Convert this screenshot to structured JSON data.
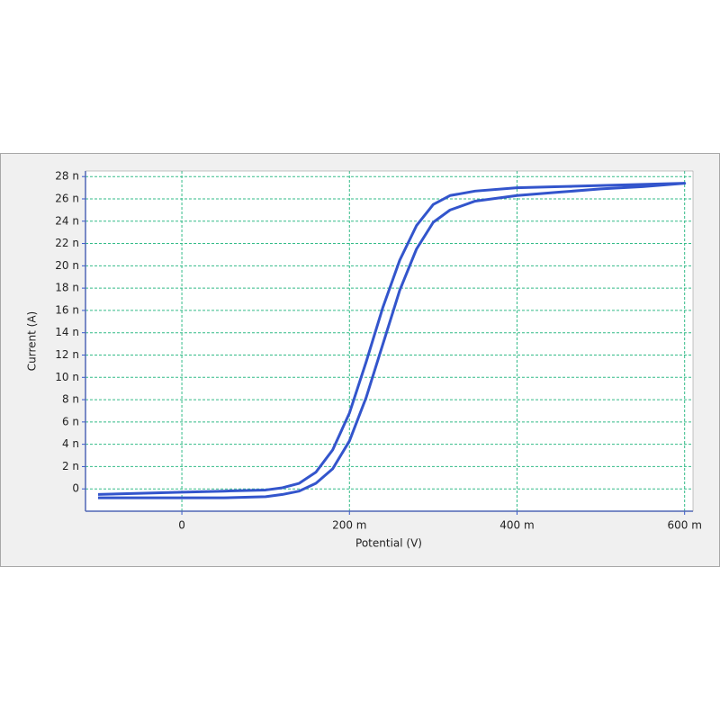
{
  "chart_data": {
    "type": "line",
    "x_label": "Potential (V)",
    "y_label": "Current (A)",
    "x": [
      -0.1,
      -0.05,
      0,
      0.05,
      0.1,
      0.12,
      0.14,
      0.16,
      0.18,
      0.2,
      0.22,
      0.24,
      0.26,
      0.28,
      0.3,
      0.32,
      0.35,
      0.4,
      0.45,
      0.5,
      0.55,
      0.6,
      0.6,
      0.55,
      0.5,
      0.45,
      0.4,
      0.35,
      0.32,
      0.3,
      0.28,
      0.26,
      0.24,
      0.22,
      0.2,
      0.18,
      0.16,
      0.14,
      0.12,
      0.1,
      0.05,
      0,
      -0.05,
      -0.1
    ],
    "values": [
      -8e-10,
      -8e-10,
      -8e-10,
      -8e-10,
      -7e-10,
      -5e-10,
      -2e-10,
      5e-10,
      1.8e-09,
      4.3e-09,
      8.2e-09,
      1.3e-08,
      1.78e-08,
      2.15e-08,
      2.39e-08,
      2.5e-08,
      2.58e-08,
      2.63e-08,
      2.66e-08,
      2.69e-08,
      2.71e-08,
      2.74e-08,
      2.74e-08,
      2.73e-08,
      2.72e-08,
      2.71e-08,
      2.7e-08,
      2.67e-08,
      2.63e-08,
      2.55e-08,
      2.36e-08,
      2.05e-08,
      1.63e-08,
      1.14e-08,
      6.8e-09,
      3.5e-09,
      1.5e-09,
      5e-10,
      1e-10,
      -1e-10,
      -2e-10,
      -3e-10,
      -4e-10,
      -5e-10
    ],
    "color": "#3355cc",
    "xlim": [
      -0.115,
      0.61
    ],
    "ylim": [
      -2e-09,
      2.85e-08
    ],
    "xticks": [
      0,
      {
        "value": 0.2,
        "label": "200 m"
      },
      {
        "value": 0.4,
        "label": "400 m"
      },
      {
        "value": 0.6,
        "label": "600 m"
      }
    ],
    "yticks": [
      0,
      {
        "value": 2e-09,
        "label": "2 n"
      },
      {
        "value": 4e-09,
        "label": "4 n"
      },
      {
        "value": 6e-09,
        "label": "6 n"
      },
      {
        "value": 8e-09,
        "label": "8 n"
      },
      {
        "value": 1e-08,
        "label": "10 n"
      },
      {
        "value": 1.2e-08,
        "label": "12 n"
      },
      {
        "value": 1.4e-08,
        "label": "14 n"
      },
      {
        "value": 1.6e-08,
        "label": "16 n"
      },
      {
        "value": 1.8e-08,
        "label": "18 n"
      },
      {
        "value": 2e-08,
        "label": "20 n"
      },
      {
        "value": 2.2e-08,
        "label": "22 n"
      },
      {
        "value": 2.4e-08,
        "label": "24 n"
      },
      {
        "value": 2.6e-08,
        "label": "26 n"
      },
      {
        "value": 2.8e-08,
        "label": "28 n"
      }
    ],
    "grid": true
  }
}
